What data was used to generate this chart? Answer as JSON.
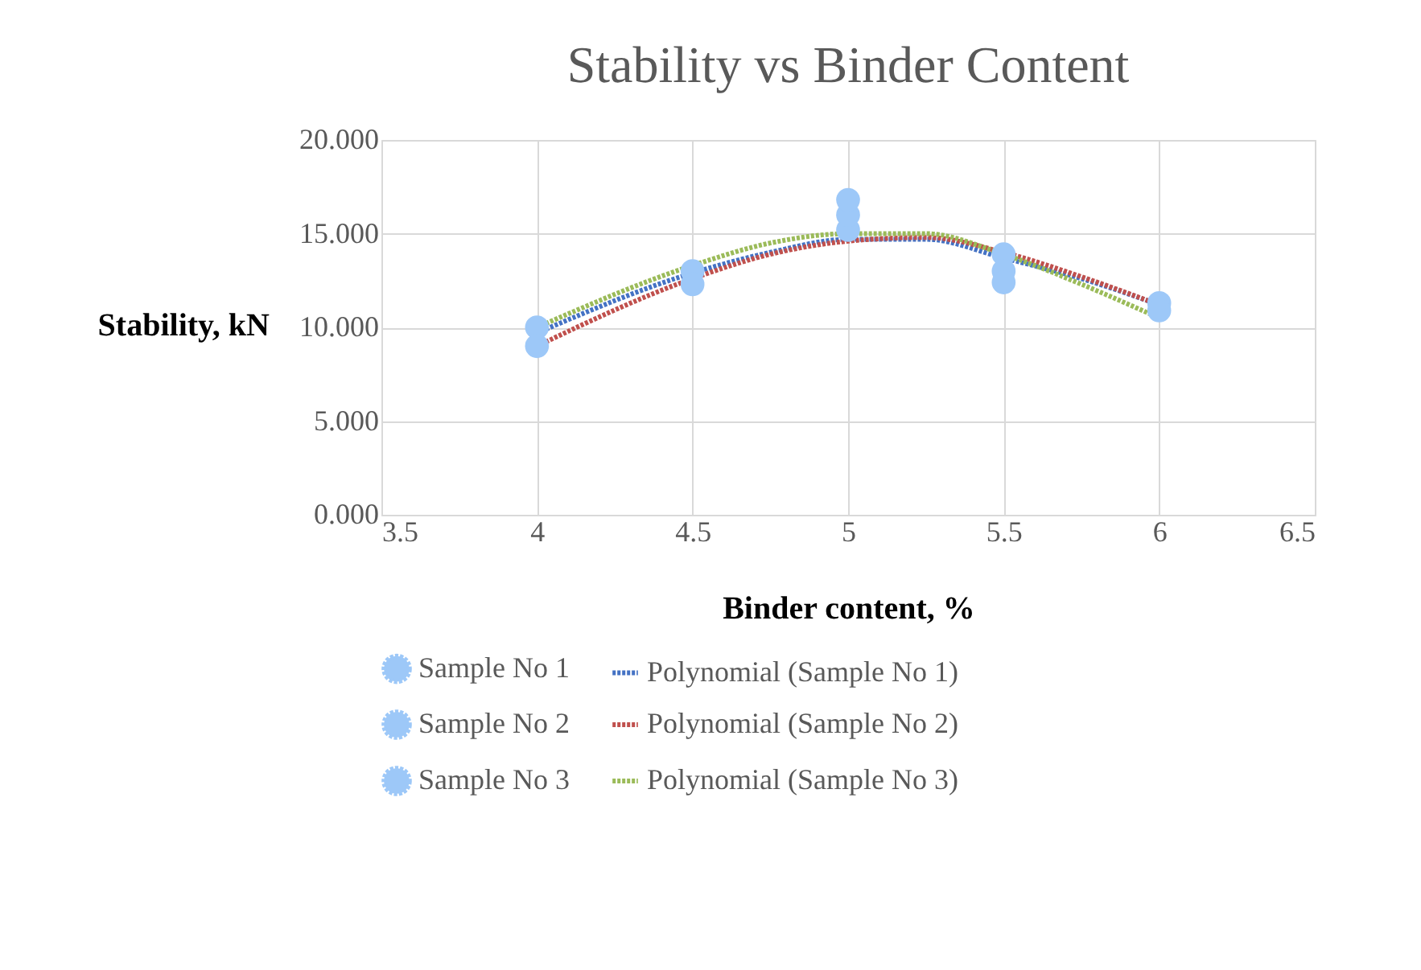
{
  "chart_data": {
    "type": "scatter",
    "title": "Stability vs Binder Content",
    "xlabel": "Binder content, %",
    "ylabel": "Stability, kN",
    "xlim": [
      3.5,
      6.5
    ],
    "xticks": [
      3.5,
      4,
      4.5,
      5,
      5.5,
      6,
      6.5
    ],
    "ylim": [
      0,
      20
    ],
    "yticks": [
      {
        "value": 0,
        "label": "0.000"
      },
      {
        "value": 5,
        "label": "5.000"
      },
      {
        "value": 10,
        "label": "10.000"
      },
      {
        "value": 15,
        "label": "15.000"
      },
      {
        "value": 20,
        "label": "20.000"
      }
    ],
    "grid": true,
    "legend": "bottom",
    "marker": "circle",
    "series": [
      {
        "name": "Sample No 1",
        "color": "#9dc8f8",
        "x": [
          4,
          4.5,
          5,
          5.5,
          6
        ],
        "values": [
          10.0,
          13.0,
          15.2,
          13.9,
          11.3
        ]
      },
      {
        "name": "Polynomial (Sample No 1)",
        "type": "line",
        "marker": "none",
        "line_style": "dotted",
        "color": "#4472c4",
        "x": [
          4,
          4.5,
          4.75,
          5,
          5.25,
          5.5,
          5.75,
          6
        ],
        "values": [
          9.7,
          12.9,
          14.0,
          14.7,
          14.7,
          13.7,
          12.6,
          11.2
        ]
      },
      {
        "name": "Sample No 2",
        "color": "#9dc8f8",
        "x": [
          4,
          4.5,
          5,
          5.5
        ],
        "values": [
          9.0,
          12.3,
          16.0,
          13.0
        ]
      },
      {
        "name": "Polynomial (Sample No 2)",
        "type": "line",
        "marker": "none",
        "line_style": "dotted",
        "color": "#c0504d",
        "x": [
          4,
          4.5,
          4.75,
          5,
          5.25,
          5.5,
          5.75,
          6
        ],
        "values": [
          9.0,
          12.6,
          13.9,
          14.6,
          14.8,
          14.0,
          12.7,
          11.2
        ]
      },
      {
        "name": "Sample No 3",
        "color": "#9dc8f8",
        "x": [
          5,
          5.5,
          6
        ],
        "values": [
          16.8,
          12.4,
          10.9
        ]
      },
      {
        "name": "Polynomial (Sample No 3)",
        "type": "line",
        "marker": "none",
        "line_style": "dotted",
        "color": "#9bbb59",
        "x": [
          4,
          4.5,
          4.75,
          5,
          5.25,
          5.5,
          5.75,
          6
        ],
        "values": [
          10.0,
          13.3,
          14.5,
          15.0,
          15.0,
          13.9,
          12.3,
          10.5
        ]
      }
    ]
  }
}
